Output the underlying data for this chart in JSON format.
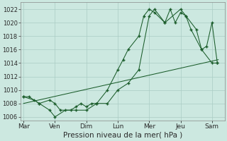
{
  "bg_color": "#cce8e0",
  "grid_color": "#aaccc4",
  "line_color": "#1a5c2a",
  "x_labels": [
    "Mar",
    "Ven",
    "Dim",
    "Lun",
    "Mer",
    "Jeu",
    "Sam"
  ],
  "x_ticks_pos": [
    0,
    1,
    2,
    3,
    4,
    5,
    6
  ],
  "ylim": [
    1005.5,
    1023.0
  ],
  "yticks": [
    1006,
    1008,
    1010,
    1012,
    1014,
    1016,
    1018,
    1020,
    1022
  ],
  "xlim": [
    -0.1,
    6.4
  ],
  "line1_x": [
    0.0,
    0.17,
    0.5,
    0.83,
    1.0,
    1.17,
    1.5,
    1.67,
    1.83,
    2.0,
    2.17,
    2.33,
    2.67,
    3.0,
    3.17,
    3.33,
    3.67,
    3.83,
    4.0,
    4.17,
    4.5,
    4.67,
    4.83,
    5.0,
    5.17,
    5.5,
    5.67,
    5.83,
    6.0,
    6.17
  ],
  "line1_y": [
    1009,
    1009,
    1008,
    1008.5,
    1008,
    1007,
    1007,
    1007.5,
    1008,
    1007.5,
    1008,
    1008,
    1010,
    1013,
    1014.5,
    1016,
    1018,
    1021,
    1022,
    1021.5,
    1020,
    1022,
    1020,
    1021.5,
    1021,
    1019,
    1016,
    1016.5,
    1020,
    1014
  ],
  "line2_x": [
    0.0,
    0.33,
    0.5,
    0.83,
    1.0,
    1.33,
    1.67,
    2.0,
    2.33,
    2.67,
    3.0,
    3.33,
    3.67,
    4.0,
    4.17,
    4.5,
    5.0,
    5.17,
    5.33,
    5.67,
    6.0,
    6.17
  ],
  "line2_y": [
    1009,
    1008.5,
    1008,
    1007,
    1006,
    1007,
    1007,
    1007,
    1008,
    1008,
    1010,
    1011,
    1013,
    1021,
    1022,
    1020,
    1022,
    1021,
    1019,
    1016,
    1014,
    1014
  ],
  "line3_x": [
    0.0,
    6.2
  ],
  "line3_y": [
    1008,
    1014.5
  ],
  "xlabel": "Pression niveau de la mer( hPa )",
  "xlabel_fontsize": 7.5,
  "tick_fontsize": 6.0,
  "xtick_fontsize": 6.5
}
